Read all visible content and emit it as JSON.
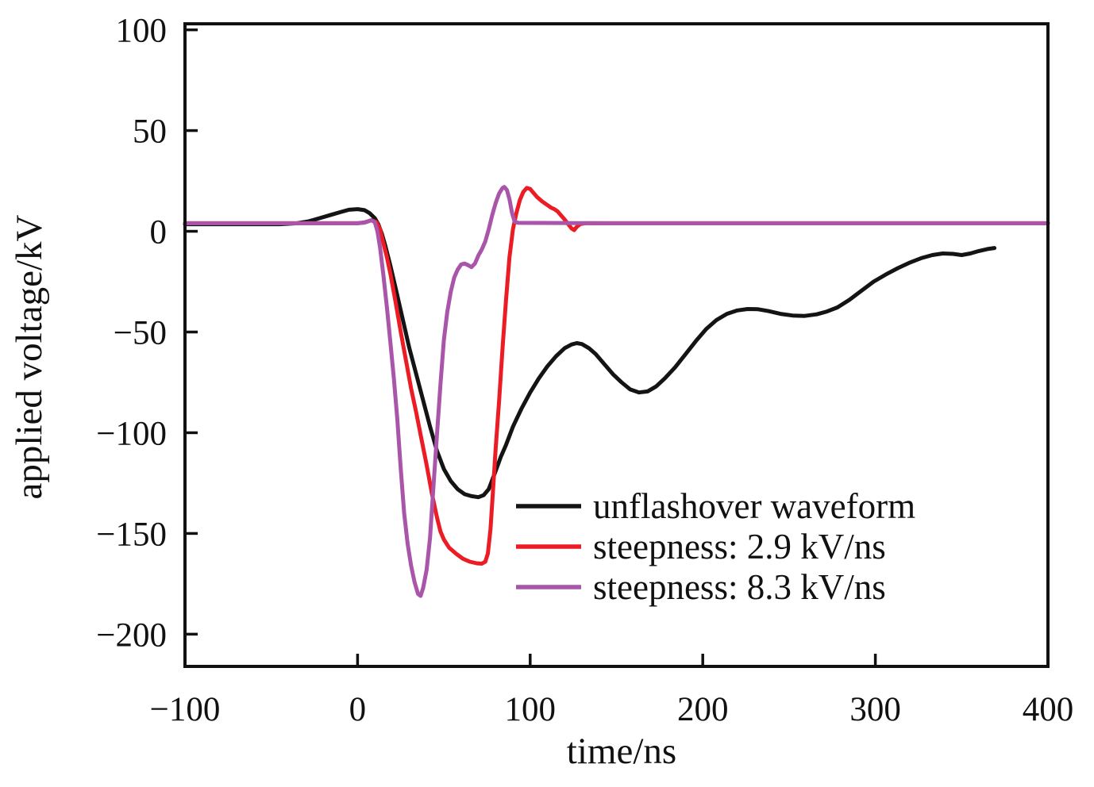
{
  "chart_data": {
    "type": "line",
    "title": "",
    "xlabel": "time/ns",
    "ylabel": "applied voltage/kV",
    "xlim": [
      -100,
      400
    ],
    "ylim": [
      -216,
      103
    ],
    "xticks": [
      -100,
      0,
      100,
      200,
      300,
      400
    ],
    "yticks": [
      -200,
      -150,
      -100,
      -50,
      0,
      50,
      100
    ],
    "grid": false,
    "legend_position": "inside lower-right",
    "axis_color": "#111111",
    "series": [
      {
        "name": "unflashover waveform",
        "color": "#141414",
        "points": [
          [
            -100,
            3.5
          ],
          [
            -70,
            3.5
          ],
          [
            -45,
            3.5
          ],
          [
            -35,
            4
          ],
          [
            -28,
            5
          ],
          [
            -22,
            6.5
          ],
          [
            -16,
            8
          ],
          [
            -10,
            9.5
          ],
          [
            -5,
            10.7
          ],
          [
            0,
            11
          ],
          [
            4,
            10.5
          ],
          [
            7,
            9
          ],
          [
            10,
            6.5
          ],
          [
            12,
            3.5
          ],
          [
            14,
            -1
          ],
          [
            16,
            -7
          ],
          [
            19,
            -17
          ],
          [
            22,
            -28
          ],
          [
            26,
            -43
          ],
          [
            30,
            -58
          ],
          [
            34,
            -71
          ],
          [
            38,
            -84
          ],
          [
            42,
            -97
          ],
          [
            46,
            -109
          ],
          [
            50,
            -118
          ],
          [
            54,
            -124
          ],
          [
            58,
            -128
          ],
          [
            62,
            -130.5
          ],
          [
            66,
            -131.5
          ],
          [
            70,
            -132
          ],
          [
            73,
            -131
          ],
          [
            76,
            -128
          ],
          [
            80,
            -119
          ],
          [
            83,
            -112
          ],
          [
            86,
            -106
          ],
          [
            90,
            -97
          ],
          [
            95,
            -88
          ],
          [
            100,
            -80
          ],
          [
            105,
            -73
          ],
          [
            110,
            -67
          ],
          [
            115,
            -62
          ],
          [
            120,
            -58
          ],
          [
            124,
            -56.2
          ],
          [
            127,
            -55.5
          ],
          [
            130,
            -56
          ],
          [
            134,
            -58
          ],
          [
            138,
            -61
          ],
          [
            143,
            -66
          ],
          [
            148,
            -71
          ],
          [
            153,
            -75
          ],
          [
            158,
            -78.5
          ],
          [
            163,
            -80
          ],
          [
            168,
            -79.5
          ],
          [
            173,
            -77
          ],
          [
            178,
            -73
          ],
          [
            184,
            -67.5
          ],
          [
            190,
            -61
          ],
          [
            196,
            -54.5
          ],
          [
            202,
            -48.5
          ],
          [
            208,
            -44
          ],
          [
            214,
            -41
          ],
          [
            220,
            -39.3
          ],
          [
            226,
            -38.6
          ],
          [
            232,
            -38.7
          ],
          [
            238,
            -39.6
          ],
          [
            245,
            -41
          ],
          [
            252,
            -41.8
          ],
          [
            259,
            -42
          ],
          [
            266,
            -41.2
          ],
          [
            272,
            -39.8
          ],
          [
            278,
            -37.8
          ],
          [
            285,
            -34
          ],
          [
            292,
            -29.5
          ],
          [
            299,
            -25
          ],
          [
            306,
            -21.5
          ],
          [
            313,
            -18.3
          ],
          [
            320,
            -15.5
          ],
          [
            327,
            -13.2
          ],
          [
            333,
            -11.8
          ],
          [
            339,
            -11
          ],
          [
            345,
            -11.2
          ],
          [
            350,
            -11.8
          ],
          [
            355,
            -11
          ],
          [
            360,
            -9.8
          ],
          [
            365,
            -8.8
          ],
          [
            369,
            -8.3
          ]
        ]
      },
      {
        "name": "steepness: 2.9 kV/ns",
        "color": "#ec1c24",
        "points": [
          [
            -100,
            4
          ],
          [
            -50,
            4
          ],
          [
            0,
            4
          ],
          [
            4,
            4.4
          ],
          [
            8,
            5.5
          ],
          [
            11,
            4.5
          ],
          [
            13,
            1
          ],
          [
            15,
            -6
          ],
          [
            17,
            -13
          ],
          [
            19,
            -21
          ],
          [
            22,
            -35
          ],
          [
            25,
            -50
          ],
          [
            28,
            -64
          ],
          [
            31,
            -78
          ],
          [
            34,
            -90
          ],
          [
            37,
            -103
          ],
          [
            40,
            -116
          ],
          [
            43,
            -130
          ],
          [
            46,
            -142
          ],
          [
            48,
            -149
          ],
          [
            50,
            -153
          ],
          [
            53,
            -157
          ],
          [
            57,
            -160
          ],
          [
            61,
            -162.5
          ],
          [
            65,
            -164
          ],
          [
            69,
            -164.8
          ],
          [
            72,
            -165
          ],
          [
            74,
            -164
          ],
          [
            75.5,
            -160
          ],
          [
            77,
            -148
          ],
          [
            78.5,
            -128
          ],
          [
            80,
            -108
          ],
          [
            82,
            -84
          ],
          [
            84,
            -58
          ],
          [
            86,
            -34
          ],
          [
            88,
            -13
          ],
          [
            90,
            1
          ],
          [
            92,
            9
          ],
          [
            94,
            15.5
          ],
          [
            96,
            19.5
          ],
          [
            98,
            21.5
          ],
          [
            100,
            21
          ],
          [
            102,
            19
          ],
          [
            104,
            17
          ],
          [
            107,
            14.8
          ],
          [
            110,
            13
          ],
          [
            112,
            11.8
          ],
          [
            114,
            11
          ],
          [
            116,
            9.8
          ],
          [
            118,
            7.8
          ],
          [
            120,
            5.8
          ],
          [
            122,
            3.6
          ],
          [
            124,
            1.4
          ],
          [
            125.5,
            0.6
          ],
          [
            127,
            2.2
          ],
          [
            129,
            3.6
          ],
          [
            132,
            4
          ],
          [
            200,
            4
          ],
          [
            300,
            4
          ],
          [
            400,
            4
          ]
        ]
      },
      {
        "name": "steepness: 8.3 kV/ns",
        "color": "#a855aa",
        "points": [
          [
            -100,
            4
          ],
          [
            -50,
            4
          ],
          [
            0,
            4
          ],
          [
            4,
            4.3
          ],
          [
            8,
            5.5
          ],
          [
            10,
            4.5
          ],
          [
            11.5,
            0
          ],
          [
            13,
            -8
          ],
          [
            15,
            -22
          ],
          [
            17,
            -38
          ],
          [
            19,
            -55
          ],
          [
            21,
            -73
          ],
          [
            23,
            -93
          ],
          [
            25,
            -118
          ],
          [
            27,
            -140
          ],
          [
            29,
            -155
          ],
          [
            31,
            -166
          ],
          [
            33,
            -174
          ],
          [
            35,
            -180
          ],
          [
            36.5,
            -181
          ],
          [
            38,
            -177
          ],
          [
            40,
            -168
          ],
          [
            42,
            -152
          ],
          [
            44,
            -126
          ],
          [
            46,
            -101
          ],
          [
            48,
            -76
          ],
          [
            50,
            -54
          ],
          [
            52,
            -40
          ],
          [
            54,
            -30
          ],
          [
            56,
            -23
          ],
          [
            58,
            -19
          ],
          [
            60,
            -16.5
          ],
          [
            62,
            -16
          ],
          [
            64,
            -16.8
          ],
          [
            66,
            -17.8
          ],
          [
            68,
            -16
          ],
          [
            70,
            -12
          ],
          [
            72,
            -9
          ],
          [
            74,
            -5
          ],
          [
            76,
            1
          ],
          [
            78,
            8
          ],
          [
            80,
            14
          ],
          [
            82,
            18.8
          ],
          [
            84,
            21.5
          ],
          [
            85,
            22
          ],
          [
            86.5,
            20.5
          ],
          [
            88,
            16
          ],
          [
            89.5,
            9
          ],
          [
            91,
            4.8
          ],
          [
            93,
            4.2
          ],
          [
            150,
            4
          ],
          [
            260,
            4
          ],
          [
            400,
            4
          ]
        ]
      }
    ]
  }
}
